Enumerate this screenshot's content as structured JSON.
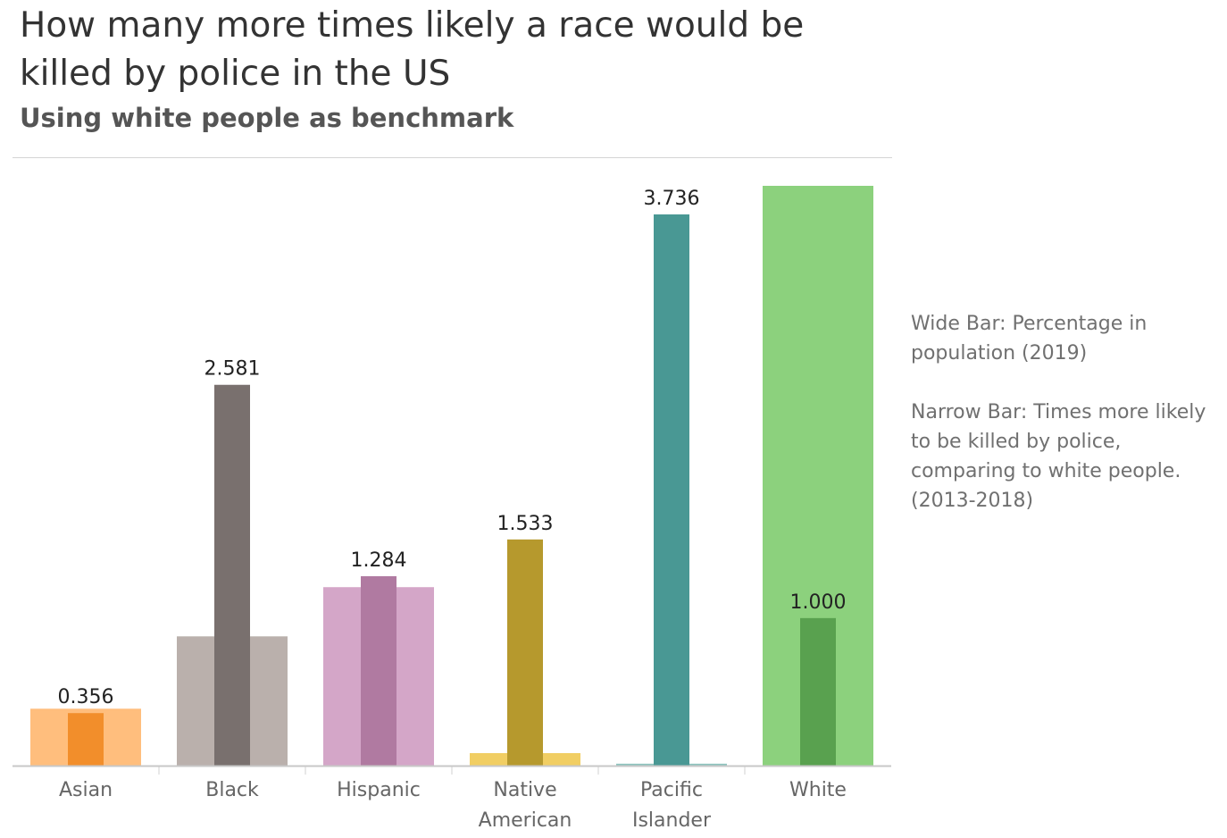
{
  "title": "How many more times likely a race would be killed by police in the US",
  "subtitle": "Using white people as benchmark",
  "legend": {
    "wide_bar": "Wide Bar: Percentage in population (2019)",
    "narrow_bar": "Narrow Bar: Times more likely to be killed by police, comparing to white people. (2013-2018)"
  },
  "chart_data": {
    "type": "bar",
    "categories": [
      [
        "Asian"
      ],
      [
        "Black"
      ],
      [
        "Hispanic"
      ],
      [
        "Native",
        "American"
      ],
      [
        "Pacific",
        "Islander"
      ],
      [
        "White"
      ]
    ],
    "series": [
      {
        "values": [
          5.9,
          13.4,
          18.5,
          1.3,
          0.2,
          60.1
        ],
        "colors": [
          "#ffbe7d",
          "#bab0ac",
          "#d4a6c8",
          "#f1ce63",
          "#8cc2bd",
          "#8cd17d"
        ]
      },
      {
        "values": [
          0.356,
          2.581,
          1.284,
          1.533,
          3.736,
          1.0
        ],
        "labels": [
          "0.356",
          "2.581",
          "1.284",
          "1.533",
          "3.736",
          "1.000"
        ],
        "colors": [
          "#f28e2b",
          "#79706e",
          "#b07aa1",
          "#b6992d",
          "#499894",
          "#59a14f"
        ]
      }
    ]
  }
}
